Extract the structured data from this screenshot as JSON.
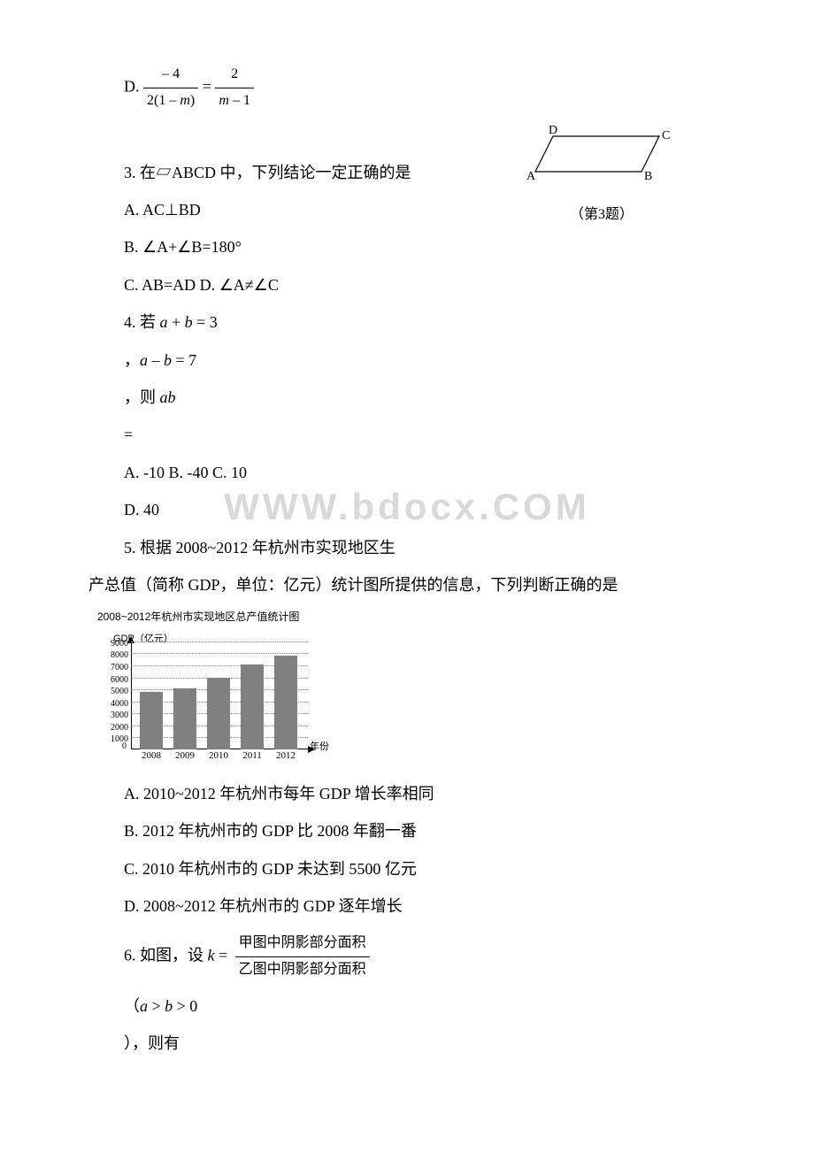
{
  "q2d": {
    "label": "D.",
    "num": "– 4",
    "den_a": "2(1 – ",
    "den_b": "m",
    "den_c": ")",
    "eq": " = ",
    "num2": "2",
    "den2_a": "m",
    "den2_b": " – 1"
  },
  "q3": {
    "body": "3. 在▱ABCD 中，下列结论一定正确的是",
    "A": "A. AC⊥BD",
    "B": " B. ∠A+∠B=180°",
    "C": "C. AB=AD D. ∠A≠∠C",
    "figcap": "（第3题）",
    "labels": {
      "A": "A",
      "B": "B",
      "C": "C",
      "D": "D"
    }
  },
  "q4": {
    "l1a": "4. 若 ",
    "l1b": "a",
    "l1c": " + ",
    "l1d": "b",
    "l1e": " = 3",
    "l2a": "，",
    "l2b": "a",
    "l2c": " – ",
    "l2d": "b",
    "l2e": " = 7",
    "l3a": "，则 ",
    "l3b": "ab",
    "l4": "=",
    "l5": "A. -10 B. -40 C. 10",
    "l6": " D. 40"
  },
  "q5": {
    "l1": "5. 根据 2008~2012 年杭州市实现地区生",
    "l2": "产总值（简称 GDP，单位：亿元）统计图所提供的信息，下列判断正确的是",
    "chart_title": "2008~2012年杭州市实现地区总产值统计图",
    "ylabel": "GDP（亿元）",
    "xlabel": "年份",
    "ymax": 9000,
    "ytick_step": 1000,
    "yticks": [
      "9000",
      "8000",
      "7000",
      "6000",
      "5000",
      "4000",
      "3000",
      "2000",
      "1000"
    ],
    "categories": [
      "2008",
      "2009",
      "2010",
      "2011",
      "2012"
    ],
    "values": [
      4800,
      5100,
      6000,
      7100,
      7800
    ],
    "bar_color": "#808080",
    "grid_color": "#888888",
    "background_color": "#ffffff",
    "A": "A. 2010~2012 年杭州市每年 GDP 增长率相同",
    "B": "B. 2012 年杭州市的 GDP 比 2008 年翻一番",
    "C": "C. 2010 年杭州市的 GDP 未达到 5500 亿元",
    "D": "D. 2008~2012 年杭州市的 GDP 逐年增长"
  },
  "q6": {
    "l1a": "6. 如图，设 ",
    "l1b": "k",
    "l1c": " = ",
    "num": "甲图中阴影部分面积",
    "den": "乙图中阴影部分面积",
    "l2a": "（",
    "l2b": "a",
    "l2c": " > ",
    "l2d": "b",
    "l2e": " > 0",
    "l3": "），则有"
  },
  "watermark": "WWW.bdocx.COM"
}
